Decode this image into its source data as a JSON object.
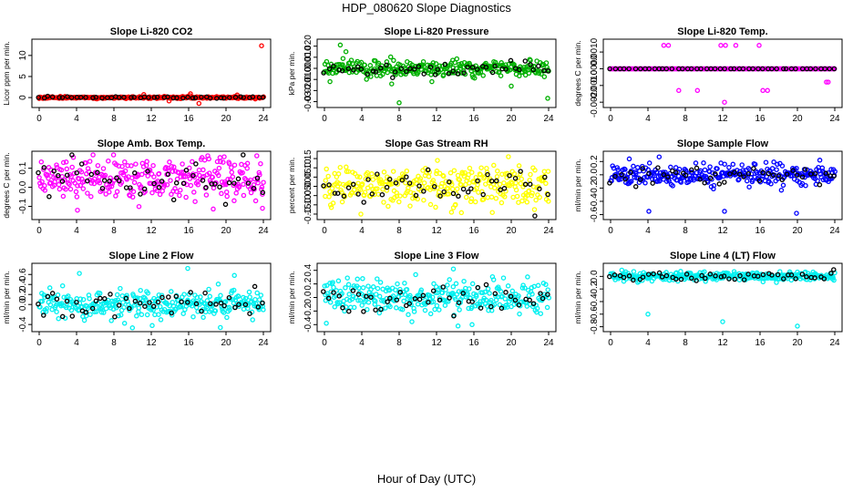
{
  "figure": {
    "title": "HDP_080620  Slope Diagnostics",
    "xlabel": "Hour of Day (UTC)"
  },
  "chart_data": [
    {
      "type": "scatter",
      "title": "Slope Li-820 CO2",
      "ylabel": "Licor ppm per min.",
      "color": "#ff0000",
      "xlim": [
        0,
        24
      ],
      "xticks": [
        0,
        4,
        8,
        12,
        16,
        20,
        24
      ],
      "ylim": [
        -1.5,
        13
      ],
      "yticks": [
        0,
        5,
        10
      ],
      "ytick_labels": [
        "0",
        "5",
        "10"
      ],
      "base": 0,
      "spread": 0.12,
      "outliers": [
        [
          23.8,
          12.3
        ],
        [
          17.1,
          -1.4
        ],
        [
          16.2,
          0.9
        ],
        [
          13.9,
          -0.8
        ],
        [
          21.2,
          0.6
        ],
        [
          11.2,
          0.7
        ]
      ]
    },
    {
      "type": "scatter",
      "title": "Slope Li-820 Pressure",
      "ylabel": "kPa per min.",
      "color": "#00b000",
      "xlim": [
        0,
        24
      ],
      "xticks": [
        0,
        4,
        8,
        12,
        16,
        20,
        24
      ],
      "ylim": [
        -0.032,
        0.023
      ],
      "yticks": [
        -0.03,
        -0.02,
        -0.01,
        0,
        0.01,
        0.02
      ],
      "ytick_labels": [
        "-0.03",
        "-0.020",
        "-0.010",
        "0.000",
        "0.010",
        "0.020"
      ],
      "base": 0,
      "spread": 0.0035,
      "outliers": [
        [
          8.0,
          -0.031
        ],
        [
          23.9,
          -0.027
        ],
        [
          1.7,
          0.021
        ],
        [
          2.3,
          0.015
        ],
        [
          0.6,
          -0.012
        ],
        [
          7.2,
          -0.014
        ],
        [
          20.0,
          -0.016
        ],
        [
          11.5,
          -0.012
        ],
        [
          15.9,
          -0.008
        ]
      ]
    },
    {
      "type": "scatter",
      "title": "Slope Li-820 Temp.",
      "ylabel": "degrees C per min.",
      "color": "#ff00ff",
      "xlim": [
        0,
        24
      ],
      "xticks": [
        0,
        4,
        8,
        12,
        16,
        20,
        24
      ],
      "ylim": [
        -0.0021,
        0.00155
      ],
      "yticks": [
        -0.002,
        -0.001,
        0,
        0.001
      ],
      "ytick_labels": [
        "-0.0020",
        "-0.0010",
        "0.0000",
        "0.0010"
      ],
      "base": 0,
      "spread": 0.0,
      "outliers": [
        [
          5.7,
          0.0014
        ],
        [
          6.2,
          0.0014
        ],
        [
          11.8,
          0.0014
        ],
        [
          12.3,
          0.0014
        ],
        [
          13.4,
          0.0014
        ],
        [
          15.9,
          0.0014
        ],
        [
          7.3,
          -0.0013
        ],
        [
          9.3,
          -0.0013
        ],
        [
          16.3,
          -0.0013
        ],
        [
          16.8,
          -0.0013
        ],
        [
          12.2,
          -0.002
        ],
        [
          23.1,
          -0.0008
        ],
        [
          23.3,
          -0.0008
        ]
      ]
    },
    {
      "type": "scatter",
      "title": "Slope Amb. Box Temp.",
      "ylabel": "degrees C per min.",
      "color": "#ff00ff",
      "xlim": [
        0,
        24
      ],
      "xticks": [
        0,
        4,
        8,
        12,
        16,
        20,
        24
      ],
      "ylim": [
        -0.15,
        0.17
      ],
      "yticks": [
        -0.1,
        0,
        0.1
      ],
      "ytick_labels": [
        "-0.1",
        "0.0",
        "0.1"
      ],
      "base": 0.04,
      "spread": 0.055,
      "outliers": [
        [
          19.8,
          0.16
        ],
        [
          4.1,
          -0.12
        ],
        [
          2.6,
          0.13
        ],
        [
          23.9,
          -0.11
        ]
      ]
    },
    {
      "type": "scatter",
      "title": "Slope Gas Stream RH",
      "ylabel": "percent per min.",
      "color": "#ffff00",
      "xlim": [
        0,
        24
      ],
      "xticks": [
        0,
        4,
        8,
        12,
        16,
        20,
        24
      ],
      "ylim": [
        -0.16,
        0.17
      ],
      "yticks": [
        -0.15,
        -0.1,
        -0.05,
        0,
        0.05,
        0.1,
        0.15
      ],
      "ytick_labels": [
        "-0.15",
        "-0.10",
        "-0.05",
        "0.00",
        "0.05",
        "0.10",
        "0.15"
      ],
      "base": 0,
      "spread": 0.055,
      "outliers": [
        [
          19.7,
          0.16
        ],
        [
          3.9,
          -0.15
        ],
        [
          13.6,
          -0.14
        ],
        [
          12.1,
          0.14
        ]
      ]
    },
    {
      "type": "scatter",
      "title": "Slope Sample Flow",
      "ylabel": "ml/min per min.",
      "color": "#0000ff",
      "xlim": [
        0,
        24
      ],
      "xticks": [
        0,
        4,
        8,
        12,
        16,
        20,
        24
      ],
      "ylim": [
        -0.62,
        0.3
      ],
      "yticks": [
        -0.6,
        -0.4,
        -0.2,
        0,
        0.2
      ],
      "ytick_labels": [
        "-0.6",
        "-0.4",
        "-0.2",
        "0.0",
        "0.2"
      ],
      "base": 0,
      "spread": 0.08,
      "outliers": [
        [
          4.1,
          -0.55
        ],
        [
          19.9,
          -0.58
        ],
        [
          12.2,
          -0.55
        ],
        [
          5.2,
          0.27
        ],
        [
          2.0,
          0.24
        ],
        [
          22.4,
          0.22
        ]
      ]
    },
    {
      "type": "scatter",
      "title": "Slope Line 2 Flow",
      "ylabel": "ml/min per min.",
      "color": "#00f0f0",
      "xlim": [
        0,
        24
      ],
      "xticks": [
        0,
        4,
        8,
        12,
        16,
        20,
        24
      ],
      "ylim": [
        -0.47,
        0.75
      ],
      "yticks": [
        -0.4,
        0,
        0.2,
        0.4,
        0.6
      ],
      "ytick_labels": [
        "-0.4",
        "0.0",
        "0.2",
        "0.4",
        "0.6"
      ],
      "base": 0,
      "spread": 0.14,
      "outliers": [
        [
          15.9,
          0.72
        ],
        [
          12.1,
          -0.42
        ],
        [
          19.4,
          -0.46
        ],
        [
          4.3,
          0.62
        ],
        [
          20.9,
          0.58
        ]
      ]
    },
    {
      "type": "scatter",
      "title": "Slope Line 3 Flow",
      "ylabel": "ml/min per min.",
      "color": "#00f0f0",
      "xlim": [
        0,
        24
      ],
      "xticks": [
        0,
        4,
        8,
        12,
        16,
        20,
        24
      ],
      "ylim": [
        -0.45,
        0.45
      ],
      "yticks": [
        -0.4,
        -0.2,
        0,
        0.2,
        0.4
      ],
      "ytick_labels": [
        "-0.4",
        "-0.2",
        "0.0",
        "0.2",
        "0.4"
      ],
      "base": 0,
      "spread": 0.12,
      "outliers": [
        [
          14.3,
          -0.42
        ],
        [
          15.8,
          -0.4
        ],
        [
          13.8,
          0.42
        ],
        [
          0.2,
          -0.38
        ]
      ]
    },
    {
      "type": "scatter",
      "title": "Slope Line 4 (LT) Flow",
      "ylabel": "ml/min per min.",
      "color": "#00f0f0",
      "xlim": [
        0,
        24
      ],
      "xticks": [
        0,
        4,
        8,
        12,
        16,
        20,
        24
      ],
      "ylim": [
        -0.82,
        0.15
      ],
      "yticks": [
        -0.8,
        -0.6,
        -0.4,
        -0.2,
        0
      ],
      "ytick_labels": [
        "-0.8",
        "-0.6",
        "-0.4",
        "-0.2",
        "0.0"
      ],
      "base": 0,
      "spread": 0.035,
      "outliers": [
        [
          4.0,
          -0.6
        ],
        [
          12.0,
          -0.72
        ],
        [
          20.0,
          -0.79
        ],
        [
          1.2,
          0.1
        ],
        [
          7.5,
          0.08
        ]
      ]
    }
  ]
}
